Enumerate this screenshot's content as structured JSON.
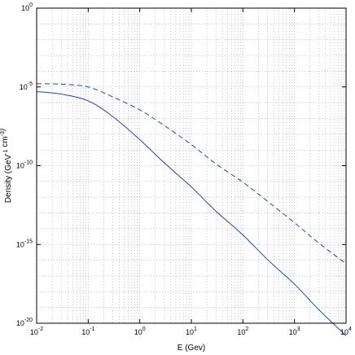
{
  "chart_data": {
    "type": "line",
    "title": "",
    "xlabel": "E (Gev)",
    "ylabel": "Density (GeV^{-1} cm^{-3})",
    "xscale": "log",
    "yscale": "log",
    "xlim": [
      0.01,
      10000
    ],
    "ylim": [
      1e-20,
      1
    ],
    "grid": true,
    "legend": "none",
    "x_ticks": [
      {
        "base": "10",
        "exp": "-2"
      },
      {
        "base": "10",
        "exp": "-1"
      },
      {
        "base": "10",
        "exp": "0"
      },
      {
        "base": "10",
        "exp": "1"
      },
      {
        "base": "10",
        "exp": "2"
      },
      {
        "base": "10",
        "exp": "3"
      },
      {
        "base": "10",
        "exp": "4"
      }
    ],
    "y_ticks": [
      {
        "base": "10",
        "exp": "0"
      },
      {
        "base": "10",
        "exp": "-5"
      },
      {
        "base": "10",
        "exp": "-10"
      },
      {
        "base": "10",
        "exp": "-15"
      },
      {
        "base": "10",
        "exp": "-20"
      }
    ],
    "series": [
      {
        "style": "solid",
        "color": "#1f3fd0",
        "x": [
          0.01,
          0.03,
          0.1,
          0.3,
          1,
          3,
          10,
          30,
          100,
          300,
          1000,
          3000,
          10000
        ],
        "y": [
          5e-06,
          3.5e-06,
          1.3e-06,
          1.3e-07,
          4.5e-09,
          1.5e-10,
          4.5e-12,
          1.3e-13,
          4e-15,
          1.1e-16,
          3e-18,
          7e-20,
          1.6e-21
        ]
      },
      {
        "style": "dashed",
        "color": "#1f3fd0",
        "x": [
          0.01,
          0.03,
          0.1,
          0.3,
          1,
          3,
          10,
          30,
          100,
          300,
          1000,
          3000,
          10000
        ],
        "y": [
          1.6e-05,
          1.5e-05,
          1e-05,
          2.3e-06,
          3.5e-07,
          3.5e-08,
          2.2e-09,
          1.3e-10,
          9e-12,
          5.5e-13,
          2.4e-14,
          1.2e-15,
          6e-17
        ]
      }
    ]
  }
}
